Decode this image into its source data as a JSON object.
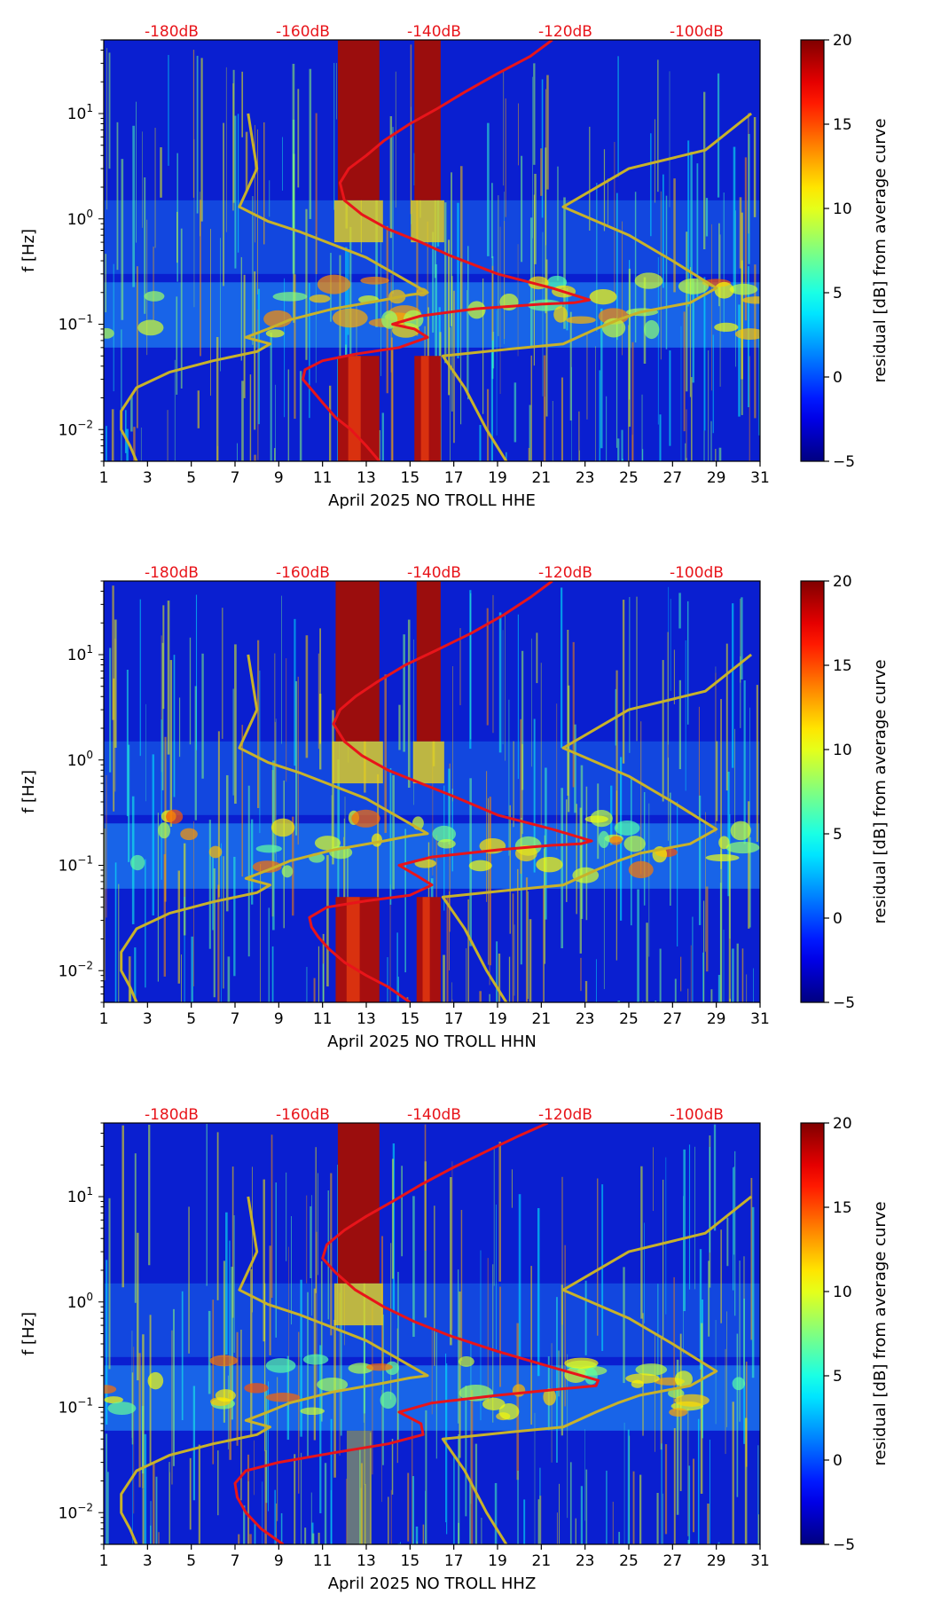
{
  "chart_data": [
    {
      "type": "heatmap",
      "xlabel": "April 2025 NO TROLL  HHE",
      "ylabel": "f [Hz]",
      "colorbar_label": "residual [dB] from average curve",
      "x_ticks": [
        "1",
        "3",
        "5",
        "7",
        "9",
        "11",
        "13",
        "15",
        "17",
        "19",
        "21",
        "23",
        "25",
        "27",
        "29",
        "31"
      ],
      "y_ticks": [
        "10^-2",
        "10^-1",
        "10^0",
        "10^1"
      ],
      "y_scale": "log",
      "ylim": [
        0.005,
        50
      ],
      "xlim": [
        1,
        31
      ],
      "colorbar_ticks": [
        "−5",
        "0",
        "5",
        "10",
        "15",
        "20"
      ],
      "colorbar_range": [
        -5,
        20
      ],
      "top_ticks": [
        "-180dB",
        "-160dB",
        "-140dB",
        "-120dB",
        "-100dB"
      ],
      "hot_bands": [
        {
          "x0": 11.7,
          "x1": 13.6
        },
        {
          "x0": 15.2,
          "x1": 16.4
        }
      ],
      "series": [
        {
          "name": "",
          "color": "#e8141a",
          "type": "psd_curve",
          "x": [
            13.6,
            13.0,
            12.3,
            11.6,
            11.0,
            10.5,
            10.1,
            10.2,
            11.0,
            12.5,
            14.5,
            15.8,
            15.2,
            14.2,
            15.5,
            18.0,
            21.0,
            22.5,
            23.2,
            21.5,
            19.0,
            16.8,
            15.5,
            14.0,
            12.8,
            12.0,
            11.8,
            12.2,
            13.0,
            13.8,
            15.0,
            16.2,
            17.5,
            19.0,
            20.5,
            21.5
          ],
          "y": [
            0.005,
            0.007,
            0.01,
            0.013,
            0.018,
            0.024,
            0.03,
            0.037,
            0.045,
            0.052,
            0.06,
            0.075,
            0.09,
            0.1,
            0.12,
            0.14,
            0.155,
            0.16,
            0.17,
            0.22,
            0.3,
            0.45,
            0.6,
            0.8,
            1.1,
            1.5,
            2.2,
            3.0,
            4.0,
            5.5,
            8,
            11,
            16,
            24,
            35,
            50
          ]
        },
        {
          "name": "",
          "color": "#c8b22a",
          "type": "model_curve",
          "x": [
            2.5,
            2.2,
            1.8,
            1.8,
            2.5,
            4.0,
            6.0,
            8.0,
            8.6,
            7.5,
            8.5,
            9.5,
            11.5,
            13.8,
            15.0,
            15.8,
            13.0,
            10.0,
            8.5,
            7.2,
            8.0,
            7.6
          ],
          "y": [
            0.005,
            0.007,
            0.01,
            0.015,
            0.025,
            0.035,
            0.045,
            0.055,
            0.065,
            0.075,
            0.09,
            0.11,
            0.14,
            0.17,
            0.19,
            0.2,
            0.43,
            0.75,
            0.95,
            1.3,
            3.0,
            10
          ]
        },
        {
          "name": "",
          "color": "#c8b22a",
          "type": "model_curve",
          "x": [
            19.4,
            18.5,
            17.5,
            16.5,
            19.5,
            22.0,
            23.5,
            24.5,
            25.5,
            27.8,
            29.0,
            27.0,
            25.0,
            22.0,
            25.0,
            28.5,
            30.6
          ],
          "y": [
            0.005,
            0.01,
            0.025,
            0.05,
            0.058,
            0.065,
            0.09,
            0.11,
            0.13,
            0.16,
            0.22,
            0.4,
            0.7,
            1.3,
            3.0,
            4.5,
            10
          ]
        }
      ]
    },
    {
      "type": "heatmap",
      "xlabel": "April 2025 NO TROLL  HHN",
      "ylabel": "f [Hz]",
      "colorbar_label": "residual [dB] from average curve",
      "x_ticks": [
        "1",
        "3",
        "5",
        "7",
        "9",
        "11",
        "13",
        "15",
        "17",
        "19",
        "21",
        "23",
        "25",
        "27",
        "29",
        "31"
      ],
      "y_ticks": [
        "10^-2",
        "10^-1",
        "10^0",
        "10^1"
      ],
      "y_scale": "log",
      "ylim": [
        0.005,
        50
      ],
      "xlim": [
        1,
        31
      ],
      "colorbar_ticks": [
        "−5",
        "0",
        "5",
        "10",
        "15",
        "20"
      ],
      "colorbar_range": [
        -5,
        20
      ],
      "top_ticks": [
        "-180dB",
        "-160dB",
        "-140dB",
        "-120dB",
        "-100dB"
      ],
      "hot_bands": [
        {
          "x0": 11.6,
          "x1": 13.6
        },
        {
          "x0": 15.3,
          "x1": 16.4
        }
      ],
      "series": [
        {
          "name": "",
          "color": "#e8141a",
          "type": "psd_curve",
          "x": [
            15.0,
            14.0,
            13.0,
            12.0,
            11.3,
            10.8,
            10.5,
            10.4,
            11.2,
            13.0,
            15.0,
            16.0,
            15.3,
            14.5,
            16.0,
            19.0,
            21.5,
            22.8,
            23.3,
            21.5,
            19.0,
            17.0,
            15.5,
            14.0,
            12.8,
            12.0,
            11.5,
            11.8,
            12.5,
            13.5,
            14.8,
            16.2,
            17.8,
            19.3,
            20.5,
            21.5
          ],
          "y": [
            0.005,
            0.007,
            0.009,
            0.012,
            0.016,
            0.021,
            0.026,
            0.032,
            0.04,
            0.046,
            0.052,
            0.065,
            0.08,
            0.1,
            0.12,
            0.14,
            0.155,
            0.16,
            0.17,
            0.22,
            0.3,
            0.45,
            0.6,
            0.8,
            1.1,
            1.5,
            2.2,
            3.0,
            4.0,
            5.5,
            8,
            11,
            16,
            24,
            35,
            50
          ]
        },
        {
          "name": "",
          "color": "#c8b22a",
          "type": "model_curve",
          "x": [
            2.5,
            2.2,
            1.8,
            1.8,
            2.5,
            4.0,
            6.0,
            8.0,
            8.6,
            7.5,
            8.5,
            9.5,
            11.5,
            13.8,
            15.0,
            15.8,
            13.0,
            10.0,
            8.5,
            7.2,
            8.0,
            7.6
          ],
          "y": [
            0.005,
            0.007,
            0.01,
            0.015,
            0.025,
            0.035,
            0.045,
            0.055,
            0.065,
            0.075,
            0.09,
            0.11,
            0.14,
            0.17,
            0.19,
            0.2,
            0.43,
            0.75,
            0.95,
            1.3,
            3.0,
            10
          ]
        },
        {
          "name": "",
          "color": "#c8b22a",
          "type": "model_curve",
          "x": [
            19.4,
            18.5,
            17.5,
            16.5,
            19.5,
            22.0,
            23.5,
            24.5,
            25.5,
            27.8,
            29.0,
            27.0,
            25.0,
            22.0,
            25.0,
            28.5,
            30.6
          ],
          "y": [
            0.005,
            0.01,
            0.025,
            0.05,
            0.058,
            0.065,
            0.09,
            0.11,
            0.13,
            0.16,
            0.22,
            0.4,
            0.7,
            1.3,
            3.0,
            4.5,
            10
          ]
        }
      ]
    },
    {
      "type": "heatmap",
      "xlabel": "April 2025 NO TROLL  HHZ",
      "ylabel": "f [Hz]",
      "colorbar_label": "residual [dB] from average curve",
      "x_ticks": [
        "1",
        "3",
        "5",
        "7",
        "9",
        "11",
        "13",
        "15",
        "17",
        "19",
        "21",
        "23",
        "25",
        "27",
        "29",
        "31"
      ],
      "y_ticks": [
        "10^-2",
        "10^-1",
        "10^0",
        "10^1"
      ],
      "y_scale": "log",
      "ylim": [
        0.005,
        50
      ],
      "xlim": [
        1,
        31
      ],
      "colorbar_ticks": [
        "−5",
        "0",
        "5",
        "10",
        "15",
        "20"
      ],
      "colorbar_range": [
        -5,
        20
      ],
      "top_ticks": [
        "-180dB",
        "-160dB",
        "-140dB",
        "-120dB",
        "-100dB"
      ],
      "hot_bands": [
        {
          "x0": 11.7,
          "x1": 13.6
        }
      ],
      "series": [
        {
          "name": "",
          "color": "#e8141a",
          "type": "psd_curve",
          "x": [
            9.2,
            8.2,
            7.5,
            7.1,
            7.0,
            7.5,
            9.0,
            11.5,
            14.0,
            15.6,
            15.5,
            14.5,
            16.0,
            19.0,
            22.0,
            23.5,
            23.6,
            21.5,
            19.0,
            16.8,
            15.2,
            13.8,
            12.5,
            11.6,
            11.0,
            11.2,
            12.0,
            13.0,
            14.2,
            15.5,
            17.0,
            18.5,
            20.0,
            21.3
          ],
          "y": [
            0.005,
            0.007,
            0.01,
            0.014,
            0.019,
            0.025,
            0.03,
            0.037,
            0.045,
            0.055,
            0.07,
            0.09,
            0.11,
            0.13,
            0.15,
            0.16,
            0.18,
            0.24,
            0.34,
            0.48,
            0.65,
            0.9,
            1.3,
            1.9,
            2.6,
            3.5,
            4.8,
            6.5,
            9,
            13,
            19,
            27,
            38,
            50
          ]
        },
        {
          "name": "",
          "color": "#c8b22a",
          "type": "model_curve",
          "x": [
            2.5,
            2.2,
            1.8,
            1.8,
            2.5,
            4.0,
            6.0,
            8.0,
            8.6,
            7.5,
            8.5,
            9.5,
            11.5,
            13.8,
            15.0,
            15.8,
            13.0,
            10.0,
            8.5,
            7.2,
            8.0,
            7.6
          ],
          "y": [
            0.005,
            0.007,
            0.01,
            0.015,
            0.025,
            0.035,
            0.045,
            0.055,
            0.065,
            0.075,
            0.09,
            0.11,
            0.14,
            0.17,
            0.19,
            0.2,
            0.43,
            0.75,
            0.95,
            1.3,
            3.0,
            10
          ]
        },
        {
          "name": "",
          "color": "#c8b22a",
          "type": "model_curve",
          "x": [
            19.4,
            18.5,
            17.5,
            16.5,
            19.5,
            22.0,
            23.5,
            24.5,
            25.5,
            27.8,
            29.0,
            27.0,
            25.0,
            22.0,
            25.0,
            28.5,
            30.6
          ],
          "y": [
            0.005,
            0.01,
            0.025,
            0.05,
            0.058,
            0.065,
            0.09,
            0.11,
            0.13,
            0.16,
            0.22,
            0.4,
            0.7,
            1.3,
            3.0,
            4.5,
            10
          ]
        }
      ]
    }
  ]
}
